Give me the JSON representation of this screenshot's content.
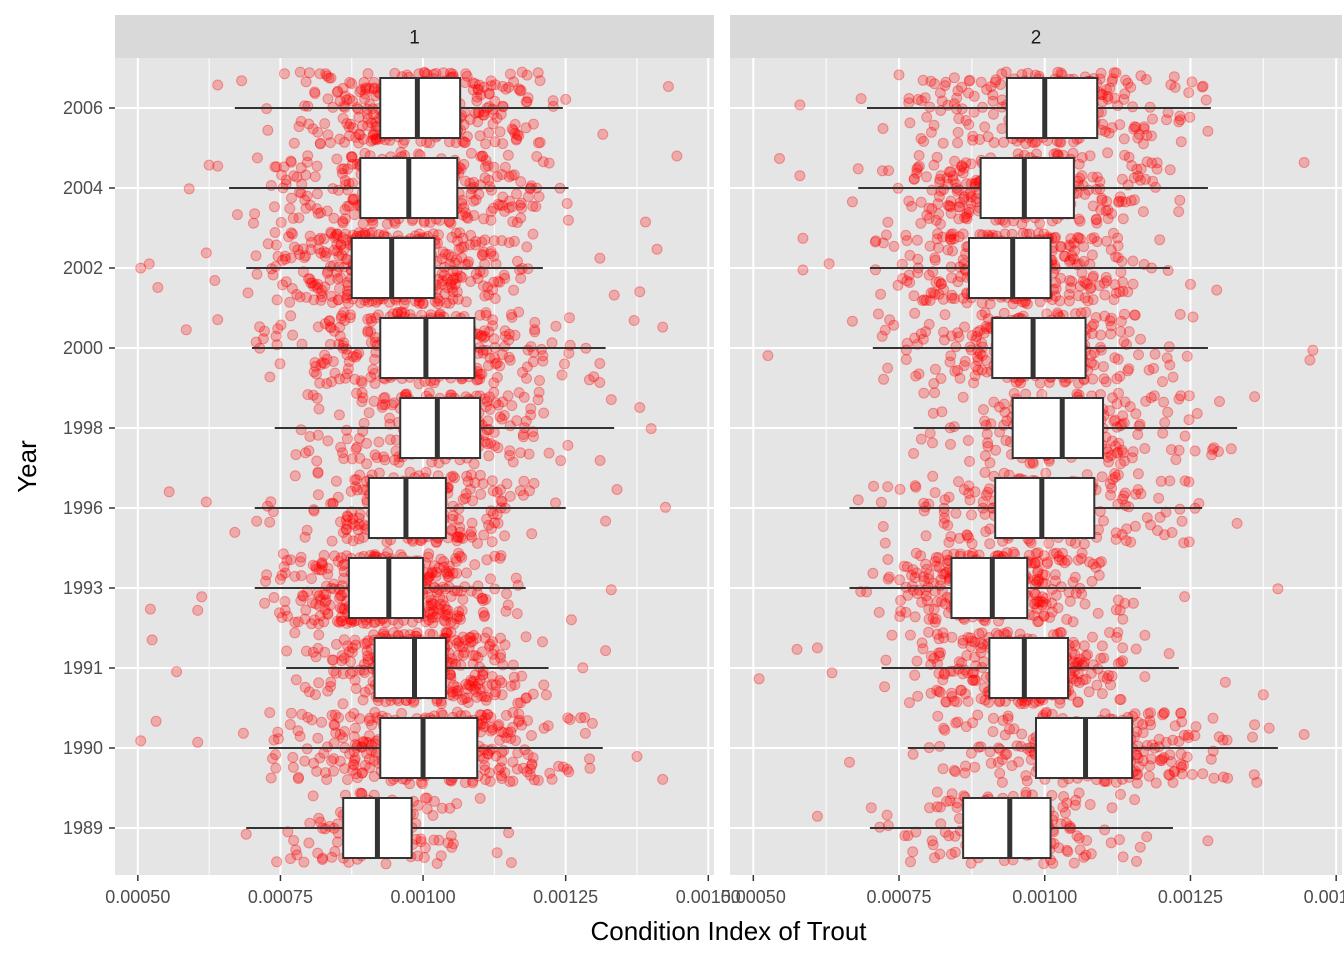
{
  "chart_data": {
    "type": "boxplot",
    "xlabel": "Condition Index of Trout",
    "ylabel": "Year",
    "xlim": [
      0.00046,
      0.00151
    ],
    "xticks": [
      0.0005,
      0.00075,
      0.001,
      0.00125,
      0.0015
    ],
    "xtick_labels": [
      "0.00050",
      "0.00075",
      "0.00100",
      "0.00125",
      "0.00150"
    ],
    "categories": [
      "1989",
      "1990",
      "1991",
      "1993",
      "1996",
      "1998",
      "2000",
      "2002",
      "2004",
      "2006"
    ],
    "point_color": "#ff0000",
    "point_opacity": 0.25,
    "panel_bg": "#e5e5e5",
    "strip_bg": "#d9d9d9",
    "grid_color": "#ffffff",
    "panels": [
      {
        "strip": "1",
        "boxes": [
          {
            "category": "1989",
            "min": 0.00069,
            "q1": 0.00086,
            "median": 0.00092,
            "q3": 0.00098,
            "max": 0.001155,
            "n": 120,
            "extra": [
              0.00069,
              0.00115
            ]
          },
          {
            "category": "1990",
            "min": 0.00073,
            "q1": 0.000925,
            "median": 0.001,
            "q3": 0.001095,
            "max": 0.001315,
            "n": 320,
            "extra": [
              0.000505,
              0.000532,
              0.000605,
              0.000685,
              0.001375,
              0.00142
            ]
          },
          {
            "category": "1991",
            "min": 0.00076,
            "q1": 0.000915,
            "median": 0.000985,
            "q3": 0.00104,
            "max": 0.00122,
            "n": 340,
            "extra": [
              0.000525,
              0.000568,
              0.00128,
              0.00132
            ]
          },
          {
            "category": "1993",
            "min": 0.000705,
            "q1": 0.00087,
            "median": 0.00094,
            "q3": 0.001,
            "max": 0.00118,
            "n": 360,
            "extra": [
              0.000522,
              0.000605,
              0.000612,
              0.00126,
              0.00133
            ]
          },
          {
            "category": "1996",
            "min": 0.000705,
            "q1": 0.000905,
            "median": 0.00097,
            "q3": 0.00104,
            "max": 0.00125,
            "n": 220,
            "extra": [
              0.000555,
              0.00062,
              0.00067,
              0.00132,
              0.00134,
              0.001425
            ]
          },
          {
            "category": "1998",
            "min": 0.00074,
            "q1": 0.00096,
            "median": 0.001025,
            "q3": 0.0011,
            "max": 0.001335,
            "n": 220,
            "extra": [
              0.00133,
              0.00138,
              0.0014
            ]
          },
          {
            "category": "2000",
            "min": 0.0007,
            "q1": 0.000925,
            "median": 0.001005,
            "q3": 0.00109,
            "max": 0.00132,
            "n": 320,
            "extra": [
              0.000585,
              0.00064,
              0.00137,
              0.00142
            ]
          },
          {
            "category": "2002",
            "min": 0.00069,
            "q1": 0.000875,
            "median": 0.000945,
            "q3": 0.00102,
            "max": 0.00121,
            "n": 420,
            "extra": [
              0.000505,
              0.00052,
              0.000535,
              0.00062,
              0.000635,
              0.00131,
              0.001335,
              0.00138,
              0.00141
            ]
          },
          {
            "category": "2004",
            "min": 0.00066,
            "q1": 0.00089,
            "median": 0.000975,
            "q3": 0.00106,
            "max": 0.001255,
            "n": 300,
            "extra": [
              0.00059,
              0.000625,
              0.00064,
              0.00139,
              0.001445
            ]
          },
          {
            "category": "2006",
            "min": 0.00067,
            "q1": 0.000925,
            "median": 0.00099,
            "q3": 0.001065,
            "max": 0.001245,
            "n": 300,
            "extra": [
              0.00064,
              0.00125,
              0.001315,
              0.00143
            ]
          }
        ]
      },
      {
        "strip": "2",
        "boxes": [
          {
            "category": "1989",
            "min": 0.0007,
            "q1": 0.00086,
            "median": 0.00094,
            "q3": 0.00101,
            "max": 0.00122,
            "n": 150,
            "extra": [
              0.00061,
              0.00128
            ]
          },
          {
            "category": "1990",
            "min": 0.000765,
            "q1": 0.000985,
            "median": 0.00107,
            "q3": 0.00115,
            "max": 0.0014,
            "n": 260,
            "extra": [
              0.000665,
              0.001445,
              0.00136
            ]
          },
          {
            "category": "1991",
            "min": 0.00072,
            "q1": 0.000905,
            "median": 0.000965,
            "q3": 0.00104,
            "max": 0.00123,
            "n": 280,
            "extra": [
              0.00051,
              0.000575,
              0.00061,
              0.000635,
              0.00131,
              0.001375
            ]
          },
          {
            "category": "1993",
            "min": 0.000665,
            "q1": 0.00084,
            "median": 0.00091,
            "q3": 0.00097,
            "max": 0.001165,
            "n": 300,
            "extra": [
              0.00124,
              0.0014
            ]
          },
          {
            "category": "1996",
            "min": 0.000665,
            "q1": 0.000915,
            "median": 0.000995,
            "q3": 0.001085,
            "max": 0.00127,
            "n": 180,
            "extra": [
              0.00068,
              0.00133
            ]
          },
          {
            "category": "1998",
            "min": 0.000775,
            "q1": 0.000945,
            "median": 0.00103,
            "q3": 0.0011,
            "max": 0.00133,
            "n": 180,
            "extra": [
              0.00136,
              0.00132
            ]
          },
          {
            "category": "2000",
            "min": 0.000705,
            "q1": 0.00091,
            "median": 0.00098,
            "q3": 0.00107,
            "max": 0.00128,
            "n": 240,
            "extra": [
              0.000525,
              0.00067,
              0.001455,
              0.00146
            ]
          },
          {
            "category": "2002",
            "min": 0.0007,
            "q1": 0.00087,
            "median": 0.000945,
            "q3": 0.00101,
            "max": 0.001215,
            "n": 300,
            "extra": [
              0.000585,
              0.000585,
              0.00063,
              0.00125,
              0.001295
            ]
          },
          {
            "category": "2004",
            "min": 0.00068,
            "q1": 0.00089,
            "median": 0.000965,
            "q3": 0.00105,
            "max": 0.00128,
            "n": 260,
            "extra": [
              0.000545,
              0.00058,
              0.00067,
              0.00068,
              0.001445
            ]
          },
          {
            "category": "2006",
            "min": 0.000695,
            "q1": 0.000935,
            "median": 0.001,
            "q3": 0.00109,
            "max": 0.001285,
            "n": 260,
            "extra": [
              0.00058,
              0.000685,
              0.00127,
              0.00128
            ]
          }
        ]
      }
    ]
  }
}
